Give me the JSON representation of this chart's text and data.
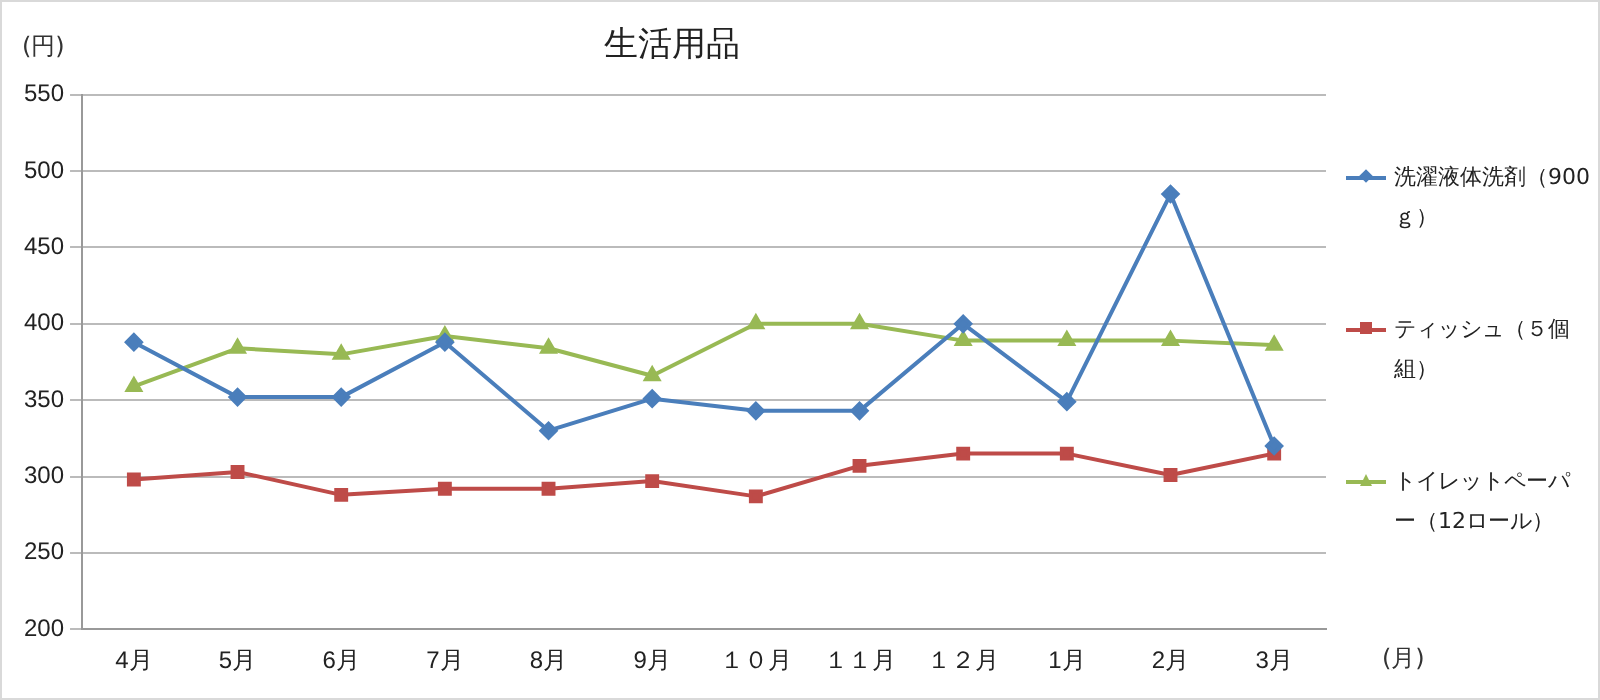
{
  "chart_data": {
    "type": "line",
    "title": "生活用品",
    "ylabel": "(円)",
    "xlabel": "(月)",
    "categories": [
      "4月",
      "5月",
      "6月",
      "7月",
      "8月",
      "9月",
      "１０月",
      "１１月",
      "１２月",
      "1月",
      "2月",
      "3月"
    ],
    "series": [
      {
        "name": "洗濯液体洗剤（900ｇ）",
        "color": "#4a7ebb",
        "marker": "diamond",
        "values": [
          388,
          352,
          352,
          388,
          330,
          351,
          343,
          343,
          400,
          349,
          485,
          320
        ]
      },
      {
        "name": "ティッシュ（５個組）",
        "color": "#be4b48",
        "marker": "square",
        "values": [
          298,
          303,
          288,
          292,
          292,
          297,
          287,
          307,
          315,
          315,
          301,
          315
        ]
      },
      {
        "name": "トイレットペーパー（12ロール）",
        "color": "#98b954",
        "marker": "triangle",
        "values": [
          359,
          384,
          380,
          392,
          384,
          366,
          400,
          400,
          389,
          389,
          389,
          386
        ]
      }
    ],
    "ylim": [
      200,
      550
    ],
    "yticks": [
      200,
      250,
      300,
      350,
      400,
      450,
      500,
      550
    ],
    "grid": "y",
    "legend": "right"
  }
}
